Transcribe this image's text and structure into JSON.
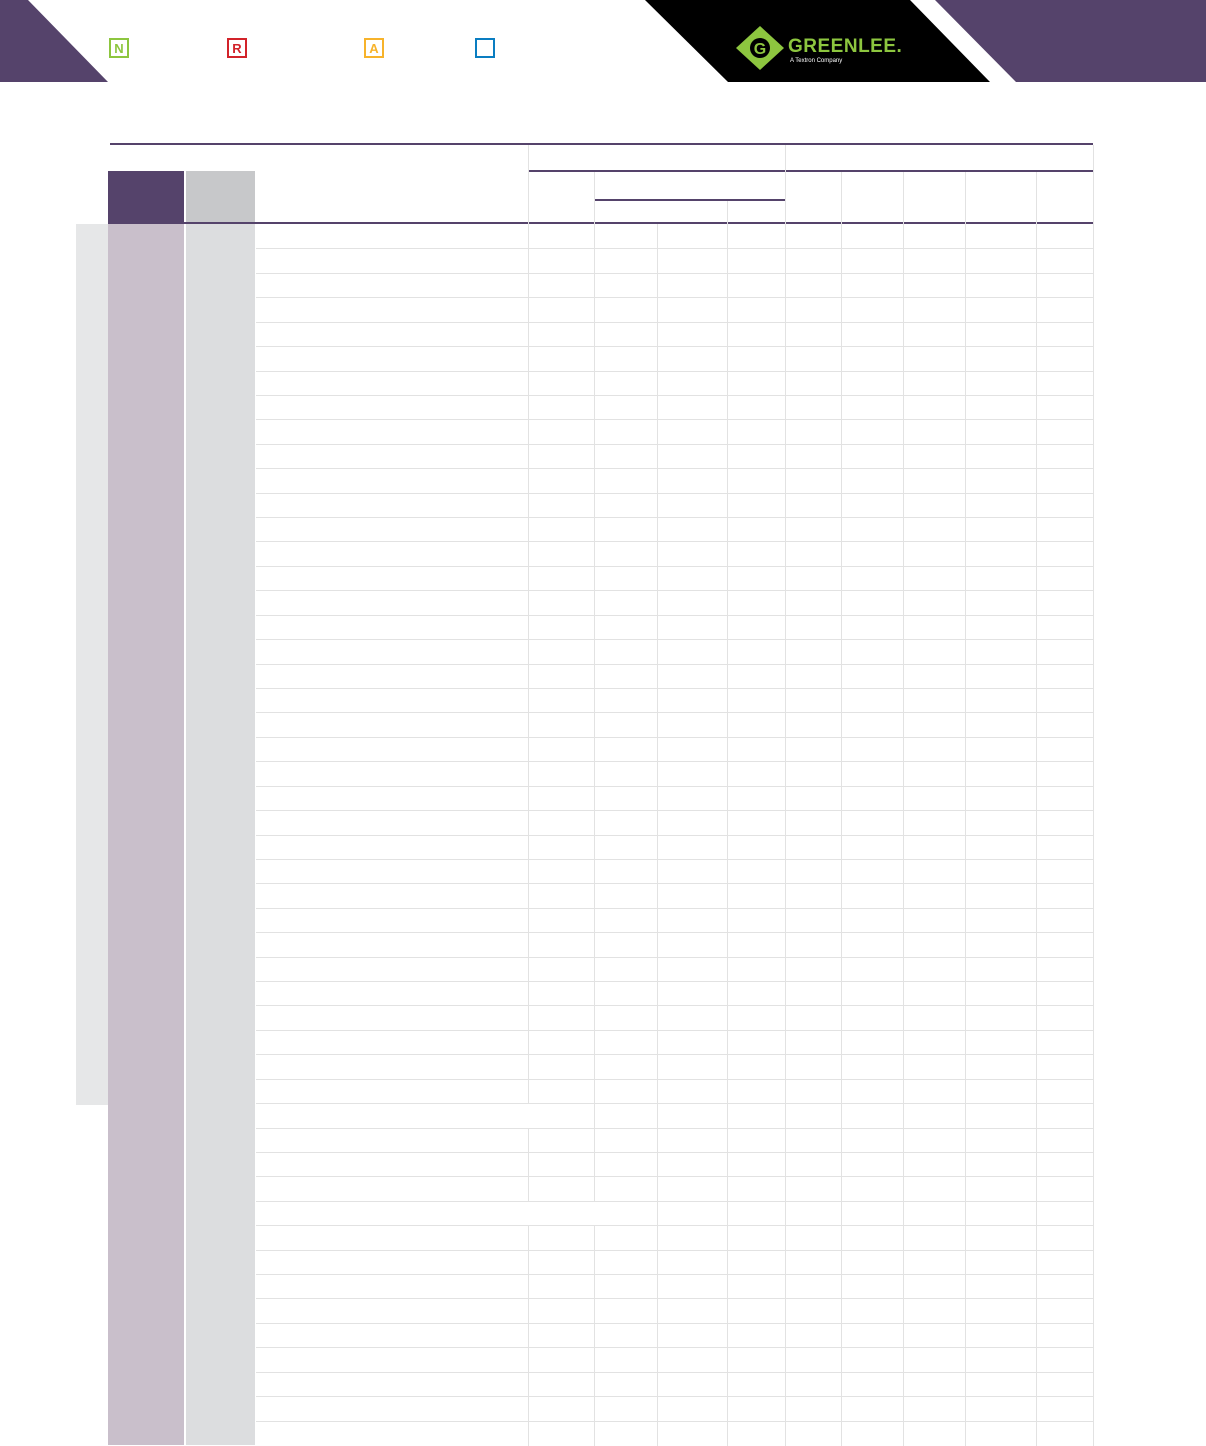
{
  "header": {
    "logo": {
      "name": "GREENLEE.",
      "tagline": "A Textron Company",
      "color": "#8dc63f"
    },
    "legend": [
      {
        "letter": "N",
        "color": "#8dc63f"
      },
      {
        "letter": "R",
        "color": "#d2232a"
      },
      {
        "letter": "A",
        "color": "#f7b32b"
      },
      {
        "letter": "",
        "color": "#0a7dc1"
      }
    ],
    "brand_color": "#55436b"
  },
  "table": {
    "row_count": 50
  }
}
